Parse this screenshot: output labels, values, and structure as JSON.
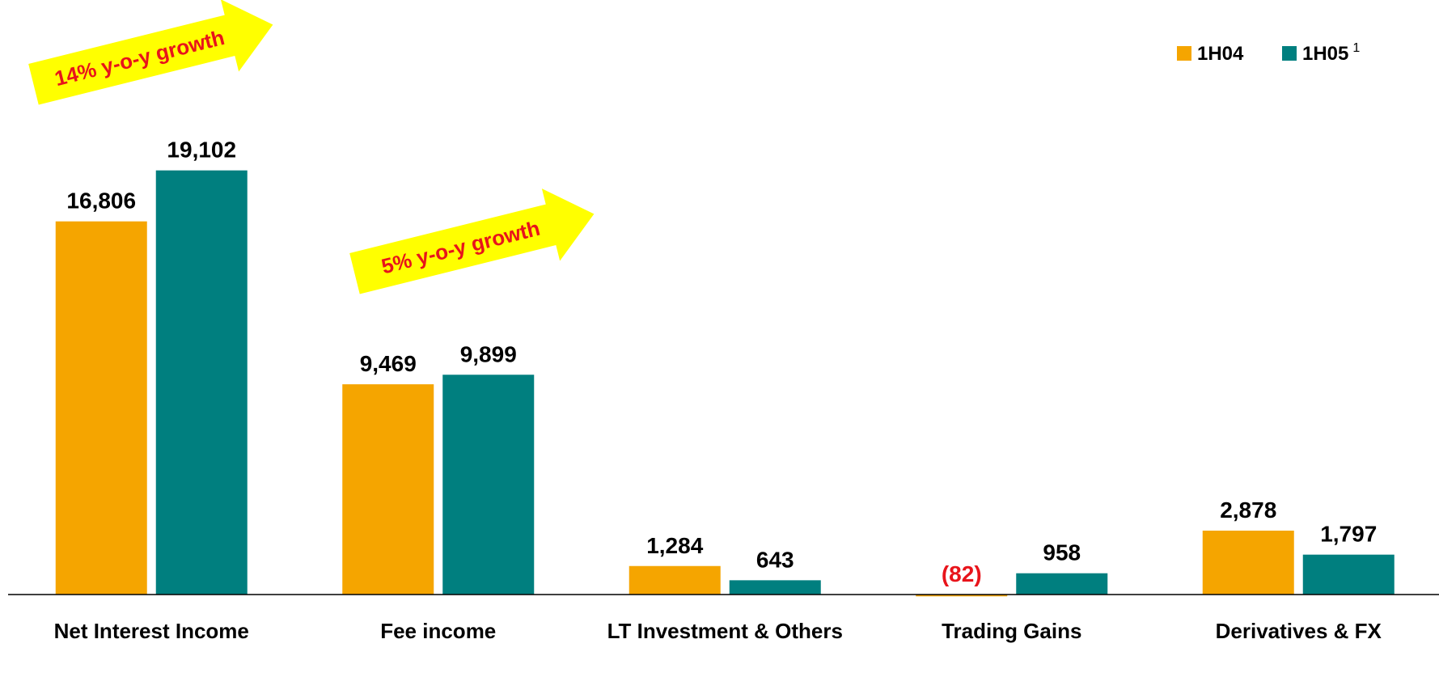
{
  "chart_data": {
    "type": "bar",
    "categories": [
      "Net Interest Income",
      "Fee income",
      "LT Investment & Others",
      "Trading Gains",
      "Derivatives & FX"
    ],
    "series": [
      {
        "name": "1H04",
        "color": "#f5a500",
        "values": [
          16806,
          9469,
          1284,
          -82,
          2878
        ],
        "value_labels": [
          "16,806",
          "9,469",
          "1,284",
          "(82)",
          "2,878"
        ]
      },
      {
        "name": "1H05",
        "note": "1",
        "color": "#007f7f",
        "values": [
          19102,
          9899,
          643,
          958,
          1797
        ],
        "value_labels": [
          "19,102",
          "9,899",
          "643",
          "958",
          "1,797"
        ]
      }
    ],
    "negative_label_color": "#e8141b",
    "ylim": [
      0,
      20000
    ],
    "legend": "top-right",
    "annotations": [
      {
        "text": "14% y-o-y growth",
        "category": 0
      },
      {
        "text": "5% y-o-y growth",
        "category": 1
      }
    ],
    "annotation_color": "#ffff00",
    "annotation_text_color": "#e8141b"
  }
}
